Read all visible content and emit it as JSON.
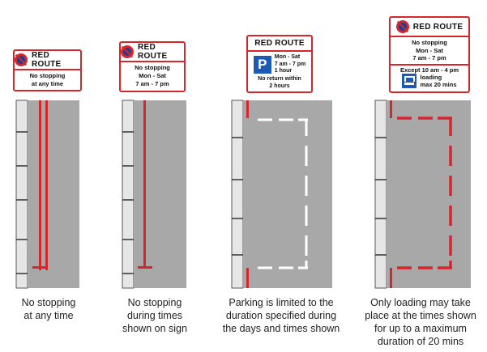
{
  "panels": [
    {
      "sign": {
        "header": "RED ROUTE",
        "body_lines": [
          "No stopping",
          "at any time"
        ]
      },
      "caption_lines": [
        "No stopping",
        "at any time"
      ]
    },
    {
      "sign": {
        "header": "RED ROUTE",
        "body_lines": [
          "No stopping",
          "Mon - Sat",
          "7 am - 7 pm"
        ]
      },
      "caption_lines": [
        "No stopping",
        "during times",
        "shown on sign"
      ]
    },
    {
      "sign": {
        "header": "RED ROUTE",
        "icon_letter": "P",
        "icon_lines": [
          "Mon - Sat",
          "7 am - 7 pm",
          "1 hour"
        ],
        "body_lines": [
          "No return within",
          "2 hours"
        ]
      },
      "caption_lines": [
        "Parking is limited to the",
        "duration specified during",
        "the days and times shown"
      ]
    },
    {
      "sign": {
        "header": "RED ROUTE",
        "body_lines": [
          "No stopping",
          "Mon - Sat",
          "7 am - 7 pm"
        ],
        "except_line": "Except 10 am - 4 pm",
        "loading_lines": [
          "loading",
          "max 20 mins"
        ]
      },
      "caption_lines": [
        "Only loading may take",
        "place at the times shown",
        "for up to a maximum",
        "duration of 20 mins"
      ]
    }
  ],
  "colors": {
    "red": "#d5262b",
    "blue": "#1d3e95",
    "road": "#a8a8a8",
    "kerb": "#e6e6e6"
  }
}
